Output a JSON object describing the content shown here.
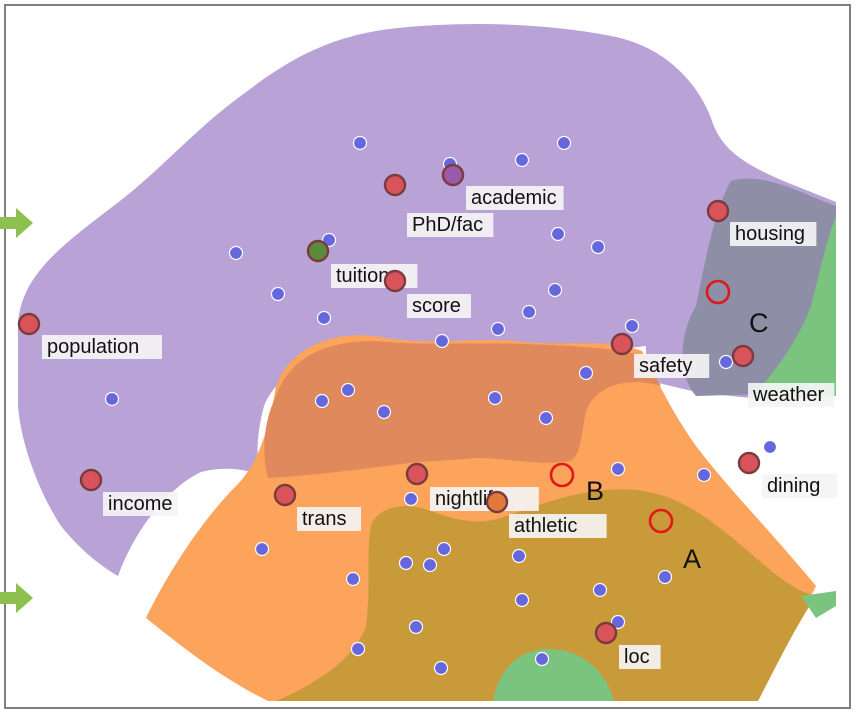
{
  "colors": {
    "purple": "#b9a2d6",
    "orange": "#fca35c",
    "orange_overlap": "#e0895c",
    "olive": "#c99a3a",
    "green": "#7bc47f",
    "gray": "#8e8ea6",
    "point": "#6666dd",
    "point_stroke": "#ffffff",
    "attribute": "#d9535a",
    "attribute_stroke": "#7a3b3f",
    "marker_ring": "#e01818",
    "arrow": "#8dc04f",
    "label_bg": "#f4f4f4"
  },
  "attributes": [
    {
      "label": "academic",
      "fill": "#9b5aa8"
    },
    {
      "label": "PhD/fac",
      "fill": "#d9535a"
    },
    {
      "label": "housing",
      "fill": "#d9535a"
    },
    {
      "label": "tuition",
      "fill": "#5a8a3a"
    },
    {
      "label": "score",
      "fill": "#d9535a"
    },
    {
      "label": "population",
      "fill": "#d9535a"
    },
    {
      "label": "safety",
      "fill": "#d9535a"
    },
    {
      "label": "weather",
      "fill": "#d9535a"
    },
    {
      "label": "dining",
      "fill": "#d9535a"
    },
    {
      "label": "income",
      "fill": "#d9535a"
    },
    {
      "label": "nightlife",
      "fill": "#d9535a"
    },
    {
      "label": "trans",
      "fill": "#d9535a"
    },
    {
      "label": "athletic",
      "fill": "#e07a3a"
    },
    {
      "label": "loc",
      "fill": "#d9535a"
    }
  ],
  "markers": [
    {
      "label": "A"
    },
    {
      "label": "B"
    },
    {
      "label": "C"
    }
  ]
}
